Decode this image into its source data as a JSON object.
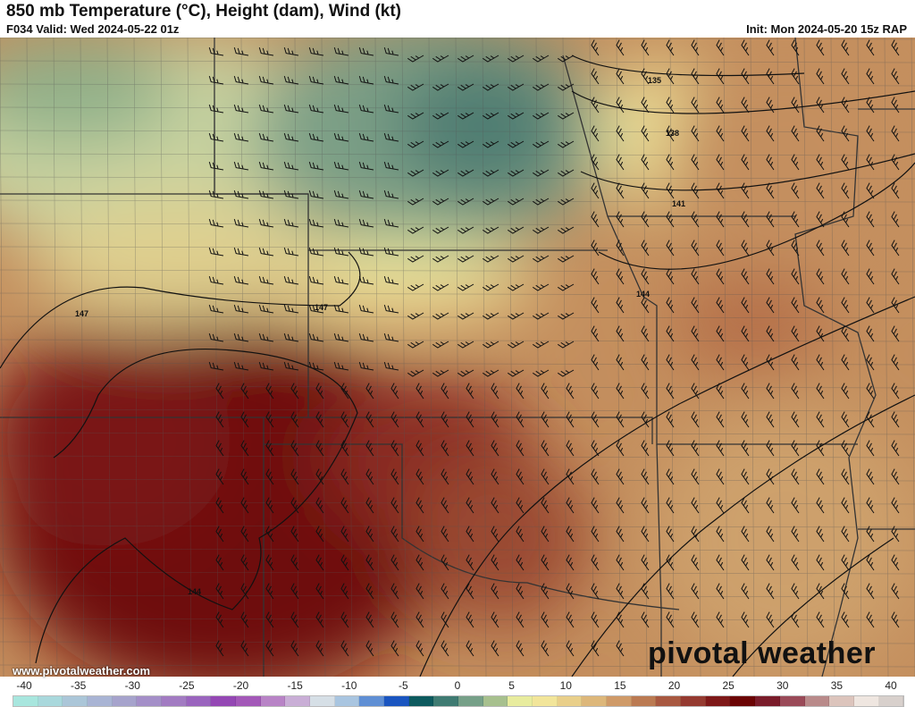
{
  "header": {
    "title": "850 mb Temperature (°C), Height (dam), Wind (kt)",
    "valid": "F034 Valid: Wed 2024-05-22 01z",
    "init": "Init: Mon 2024-05-20 15z RAP"
  },
  "map": {
    "contour_labels": [
      "135",
      "138",
      "141",
      "144",
      "147",
      "147",
      "144"
    ],
    "website": "www.pivotalweather.com",
    "logo": "pivotal weather"
  },
  "colorbar": {
    "ticks": [
      "-40",
      "-35",
      "-30",
      "-25",
      "-20",
      "-15",
      "-10",
      "-5",
      "0",
      "5",
      "10",
      "15",
      "20",
      "25",
      "30",
      "35",
      "40"
    ],
    "unit": "°C",
    "colors": [
      "#a8e6de",
      "#a9d8dc",
      "#abc6d8",
      "#a9b4d4",
      "#a6a3cc",
      "#a48fc8",
      "#a27bc2",
      "#9a64be",
      "#9447b4",
      "#a358b8",
      "#b883c6",
      "#c9aed6",
      "#d6dfe6",
      "#a9c5e0",
      "#5f8fd4",
      "#1a55c0",
      "#0d5a5e",
      "#3f7b72",
      "#76a088",
      "#a7c08e",
      "#e8ec9e",
      "#f2e59a",
      "#e9cf8a",
      "#ddb77a",
      "#cf9a68",
      "#bb7a52",
      "#a85840",
      "#953a30",
      "#7e1818",
      "#6b0404",
      "#7a1c2a",
      "#9a4a58",
      "#b98a8a",
      "#dcc4bc",
      "#efe6e0",
      "#d8d0cc"
    ]
  }
}
